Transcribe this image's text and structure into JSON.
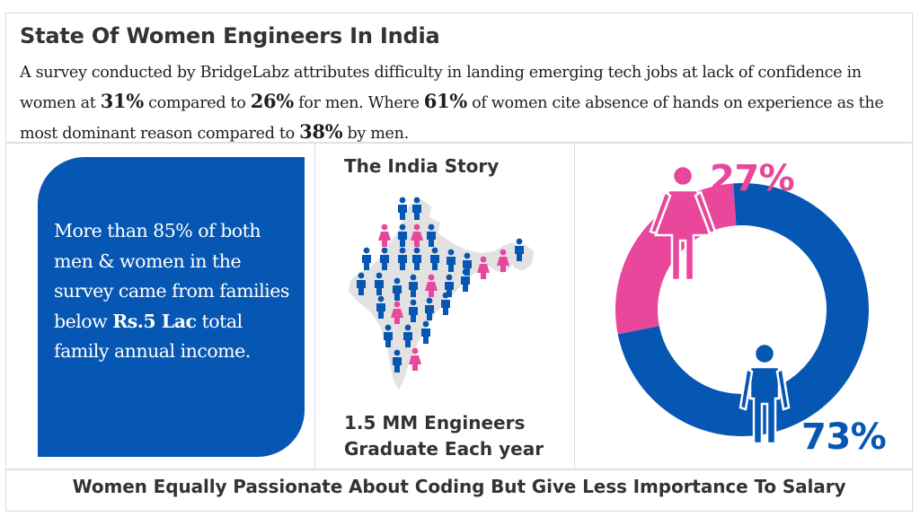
{
  "header": {
    "title": "State Of Women Engineers In India",
    "desc_1": "A survey conducted by BridgeLabz attributes difficulty in landing emerging tech jobs at lack of confidence in women at ",
    "stat_1": "31%",
    "desc_2": " compared to ",
    "stat_2": "26%",
    "desc_3": " for men. Where ",
    "stat_3": "61%",
    "desc_4": " of women cite absence of hands on experience as the most dominant reason compared to ",
    "stat_4": "38%",
    "desc_5": " by men."
  },
  "card": {
    "text_1": "More than 85% of both men & women in the survey came from families below ",
    "highlight": "Rs.5 Lac",
    "text_2": " total family annual income."
  },
  "india": {
    "title": "The India Story",
    "caption_line1": "1.5 MM Engineers",
    "caption_line2": "Graduate Each year"
  },
  "chart_data": {
    "type": "pie",
    "title": "",
    "labels": [
      "27%",
      "73%"
    ],
    "values": [
      27,
      73
    ],
    "series_colors": [
      "#e8479b",
      "#0656b3"
    ],
    "icons": [
      "woman-icon",
      "man-icon"
    ]
  },
  "footer": {
    "text": "Women Equally Passionate About Coding But Give Less Importance To Salary"
  },
  "colors": {
    "blue": "#0656b3",
    "pink": "#e8479b",
    "map_gray": "#e2e2e2"
  }
}
